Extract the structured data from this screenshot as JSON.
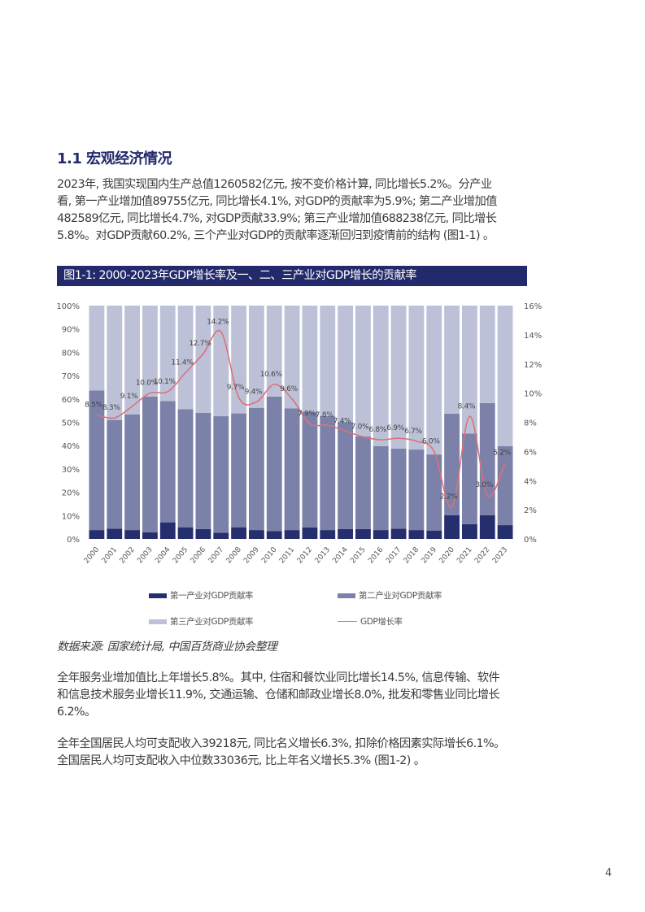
{
  "heading": "1.1 宏观经济情况",
  "para1": [
    "2023年, 我国实现国内生产总值1260582亿元, 按不变价格计算, 同比增长5.2%。分产业",
    "看, 第一产业增加值89755亿元, 同比增长4.1%, 对GDP的贡献率为5.9%; 第二产业增加值",
    "482589亿元, 同比增长4.7%, 对GDP贡献33.9%; 第三产业增加值688238亿元, 同比增长",
    "5.8%。对GDP贡献60.2%, 三个产业对GDP的贡献率逐渐回归到疫情前的结构 (图1-1) 。"
  ],
  "figure_title": "图1-1: 2000-2023年GDP增长率及一、二、三产业对GDP增长的贡献率",
  "chart_data": {
    "type": "bar",
    "stacked": true,
    "categories": [
      "2000",
      "2001",
      "2002",
      "2003",
      "2004",
      "2005",
      "2006",
      "2007",
      "2008",
      "2009",
      "2010",
      "2011",
      "2012",
      "2013",
      "2014",
      "2015",
      "2016",
      "2017",
      "2018",
      "2019",
      "2020",
      "2021",
      "2022",
      "2023"
    ],
    "series": [
      {
        "name": "第一产业对GDP贡献率",
        "color": "#262f6e",
        "axis": "left",
        "values": [
          3.8,
          4.4,
          3.8,
          2.8,
          7.1,
          5.0,
          4.2,
          2.6,
          5.0,
          3.8,
          3.3,
          3.8,
          4.9,
          3.8,
          4.2,
          4.2,
          3.8,
          4.4,
          3.8,
          3.6,
          10.1,
          6.3,
          10.2,
          5.9
        ]
      },
      {
        "name": "第二产业对GDP贡献率",
        "color": "#7b81a9",
        "axis": "left",
        "values": [
          59.8,
          46.6,
          49.6,
          58.2,
          52.0,
          50.6,
          49.9,
          50.0,
          48.8,
          52.4,
          57.7,
          52.2,
          49.6,
          48.8,
          45.9,
          39.8,
          36.0,
          34.3,
          34.5,
          32.6,
          43.6,
          38.9,
          48.0,
          33.9
        ]
      },
      {
        "name": "第三产业对GDP贡献率",
        "color": "#bdc1d7",
        "axis": "left",
        "values": [
          36.4,
          49.0,
          46.6,
          39.0,
          40.9,
          44.4,
          45.9,
          47.4,
          46.2,
          43.8,
          39.0,
          44.0,
          45.5,
          47.4,
          49.9,
          56.0,
          60.2,
          61.3,
          61.7,
          63.8,
          46.3,
          54.8,
          41.8,
          60.2
        ]
      },
      {
        "name": "GDP增长率",
        "type": "line",
        "color": "#d9727a",
        "axis": "right",
        "values": [
          8.5,
          8.3,
          9.1,
          10.0,
          10.1,
          11.4,
          12.7,
          14.2,
          9.7,
          9.4,
          10.6,
          9.6,
          7.9,
          7.8,
          7.4,
          7.0,
          6.8,
          6.9,
          6.7,
          6.0,
          2.2,
          8.4,
          3.0,
          5.2
        ],
        "labels": [
          "8.5%",
          "8.3%",
          "9.1%",
          "10.0%",
          "10.1%",
          "11.4%",
          "12.7%",
          "14.2%",
          "9.7%",
          "9.4%",
          "10.6%",
          "9.6%",
          "7.9%",
          "7.8%",
          "7.4%",
          "7.0%",
          "6.8%",
          "6.9%",
          "6.7%",
          "6.0%",
          "2.2%",
          "8.4%",
          "3.0%",
          "5.2%"
        ]
      }
    ],
    "y_left": {
      "range": [
        0,
        100
      ],
      "ticks": [
        "0%",
        "10%",
        "20%",
        "30%",
        "40%",
        "50%",
        "60%",
        "70%",
        "80%",
        "90%",
        "100%"
      ]
    },
    "y_right": {
      "range": [
        0,
        16
      ],
      "ticks": [
        "0%",
        "2%",
        "4%",
        "6%",
        "8%",
        "10%",
        "12%",
        "14%",
        "16%"
      ]
    },
    "grid": false,
    "legend_placement": "bottom"
  },
  "legend": [
    "第一产业对GDP贡献率",
    "第二产业对GDP贡献率",
    "第三产业对GDP贡献率",
    "GDP增长率"
  ],
  "source": "数据来源: 国家统计局, 中国百货商业协会整理",
  "para2": [
    "全年服务业增加值比上年增长5.8%。其中, 住宿和餐饮业同比增长14.5%, 信息传输、软件",
    "和信息技术服务业增长11.9%, 交通运输、仓储和邮政业增长8.0%, 批发和零售业同比增长",
    "6.2%。"
  ],
  "para3": [
    "全年全国居民人均可支配收入39218元, 同比名义增长6.3%, 扣除价格因素实际增长6.1%。",
    "全国居民人均可支配收入中位数33036元, 比上年名义增长5.3% (图1-2) 。"
  ],
  "page_number": "4"
}
